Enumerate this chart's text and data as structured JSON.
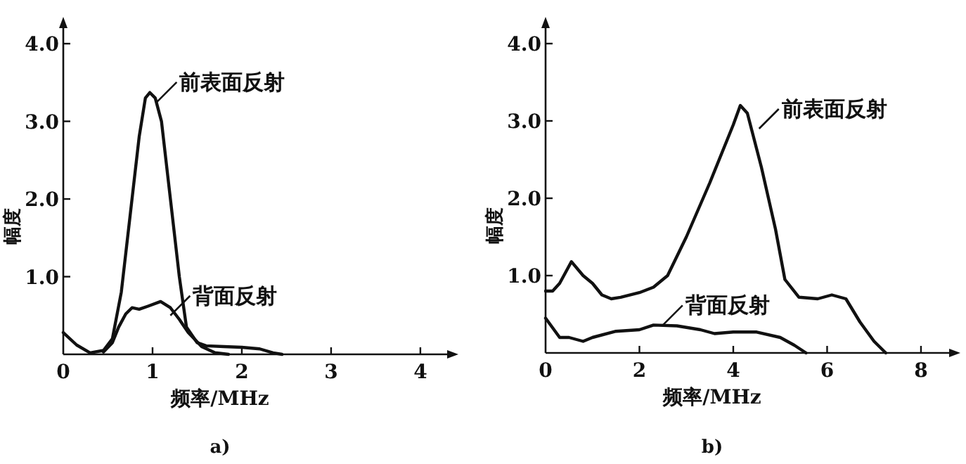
{
  "chart_data": [
    {
      "type": "line",
      "title": "a)",
      "xlabel": "频率/MHz",
      "ylabel": "幅度",
      "xlim": [
        0,
        4.3
      ],
      "ylim": [
        0,
        4.2
      ],
      "xticks": [
        0,
        1,
        2,
        3,
        4
      ],
      "yticks": [
        {
          "value": 0,
          "label": null
        },
        {
          "value": 1,
          "label": "1.0"
        },
        {
          "value": 2,
          "label": "2.0"
        },
        {
          "value": 3,
          "label": "3.0"
        },
        {
          "value": 4,
          "label": "4.0"
        }
      ],
      "grid": false,
      "marker": "none",
      "line_style": "solid",
      "series": [
        {
          "color": "#111111",
          "x": [
            0,
            0.15,
            0.3,
            0.45,
            0.55,
            0.65,
            0.75,
            0.85,
            0.92,
            0.97,
            1.03,
            1.1,
            1.2,
            1.3,
            1.38,
            1.5,
            1.6,
            1.8,
            2.0,
            2.2,
            2.35,
            2.45
          ],
          "values": [
            0.28,
            0.12,
            0.02,
            0.05,
            0.2,
            0.8,
            1.8,
            2.8,
            3.3,
            3.37,
            3.3,
            3.0,
            2.0,
            1.0,
            0.35,
            0.15,
            0.11,
            0.1,
            0.09,
            0.07,
            0.02,
            0
          ]
        },
        {
          "color": "#111111",
          "x": [
            0.45,
            0.55,
            0.62,
            0.7,
            0.77,
            0.85,
            0.95,
            1.09,
            1.2,
            1.3,
            1.4,
            1.55,
            1.7,
            1.85
          ],
          "values": [
            0.03,
            0.15,
            0.35,
            0.52,
            0.6,
            0.58,
            0.62,
            0.68,
            0.6,
            0.45,
            0.28,
            0.1,
            0.02,
            0
          ]
        }
      ],
      "annotations": [
        {
          "text": "前表面反射",
          "x": 1.05,
          "y": 3.25
        },
        {
          "text": "背面反射",
          "x": 1.2,
          "y": 0.5
        }
      ]
    },
    {
      "type": "line",
      "title": "b)",
      "xlabel": "频率/MHz",
      "ylabel": "幅度",
      "xlim": [
        0,
        8.6
      ],
      "ylim": [
        0,
        4.2
      ],
      "xticks": [
        0,
        2,
        4,
        6,
        8
      ],
      "yticks": [
        {
          "value": 0,
          "label": null
        },
        {
          "value": 1,
          "label": "1.0"
        },
        {
          "value": 2,
          "label": "2.0"
        },
        {
          "value": 3,
          "label": "3.0"
        },
        {
          "value": 4,
          "label": "4.0"
        }
      ],
      "grid": false,
      "marker": "none",
      "line_style": "solid",
      "series": [
        {
          "color": "#111111",
          "x": [
            0,
            0.15,
            0.3,
            0.55,
            0.8,
            1.0,
            1.2,
            1.4,
            1.6,
            2.0,
            2.3,
            2.6,
            3.0,
            3.5,
            4.0,
            4.15,
            4.3,
            4.6,
            4.9,
            5.1,
            5.4,
            5.8,
            6.1,
            6.4,
            6.7,
            7.0,
            7.25
          ],
          "values": [
            0.8,
            0.8,
            0.9,
            1.18,
            1.0,
            0.9,
            0.75,
            0.7,
            0.72,
            0.78,
            0.85,
            1.0,
            1.5,
            2.2,
            2.95,
            3.2,
            3.1,
            2.4,
            1.6,
            0.95,
            0.72,
            0.7,
            0.75,
            0.7,
            0.4,
            0.15,
            0
          ]
        },
        {
          "color": "#111111",
          "x": [
            0,
            0.3,
            0.5,
            0.8,
            1.0,
            1.5,
            2.0,
            2.3,
            2.8,
            3.3,
            3.6,
            4.0,
            4.5,
            5.0,
            5.3,
            5.55
          ],
          "values": [
            0.45,
            0.2,
            0.2,
            0.15,
            0.2,
            0.28,
            0.3,
            0.36,
            0.35,
            0.3,
            0.25,
            0.27,
            0.27,
            0.2,
            0.1,
            0
          ]
        }
      ],
      "annotations": [
        {
          "text": "前表面反射",
          "x": 4.55,
          "y": 2.9
        },
        {
          "text": "背面反射",
          "x": 2.5,
          "y": 0.36
        }
      ]
    }
  ]
}
